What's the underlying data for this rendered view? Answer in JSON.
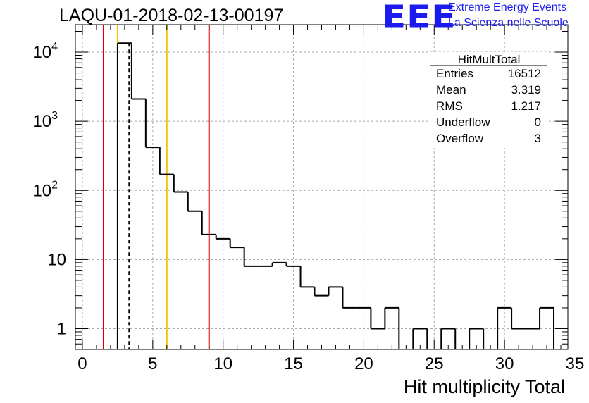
{
  "header": {
    "title": "LAQU-01-2018-02-13-00197",
    "logo_text": "EEE",
    "logo_line1": "Extreme Energy Events",
    "logo_line2": "La Scienza nelle Scuole"
  },
  "stats": {
    "name": "HitMultTotal",
    "rows": [
      {
        "label": "Entries",
        "value": "16512"
      },
      {
        "label": "Mean",
        "value": "3.319"
      },
      {
        "label": "RMS",
        "value": "1.217"
      },
      {
        "label": "Underflow",
        "value": "0"
      },
      {
        "label": "Overflow",
        "value": "3"
      }
    ]
  },
  "colors": {
    "red": "#e00000",
    "yellow": "#f2c200",
    "grid": "#a8a8a8",
    "axis": "#000000",
    "logo": "#1b1bf0"
  },
  "chart_data": {
    "type": "histogram",
    "title": "LAQU-01-2018-02-13-00197",
    "xlabel": "Hit multiplicity Total",
    "ylabel": "",
    "yscale": "log",
    "xlim": [
      -0.5,
      34.5
    ],
    "ylim": [
      0.5,
      25000
    ],
    "xticks": [
      0,
      5,
      10,
      15,
      20,
      25,
      30,
      35
    ],
    "yticks": [
      {
        "value": 1,
        "label": "1"
      },
      {
        "value": 10,
        "label": "10"
      },
      {
        "value": 100,
        "label": "10^2"
      },
      {
        "value": 1000,
        "label": "10^3"
      },
      {
        "value": 10000,
        "label": "10^4"
      }
    ],
    "grid": true,
    "bins": [
      {
        "lo": 2.5,
        "hi": 3.5,
        "count": 13500
      },
      {
        "lo": 3.5,
        "hi": 4.5,
        "count": 2100
      },
      {
        "lo": 4.5,
        "hi": 5.5,
        "count": 420
      },
      {
        "lo": 5.5,
        "hi": 6.5,
        "count": 170
      },
      {
        "lo": 6.5,
        "hi": 7.5,
        "count": 95
      },
      {
        "lo": 7.5,
        "hi": 8.5,
        "count": 50
      },
      {
        "lo": 8.5,
        "hi": 9.5,
        "count": 23
      },
      {
        "lo": 9.5,
        "hi": 10.5,
        "count": 20
      },
      {
        "lo": 10.5,
        "hi": 11.5,
        "count": 15
      },
      {
        "lo": 11.5,
        "hi": 12.5,
        "count": 8
      },
      {
        "lo": 12.5,
        "hi": 13.5,
        "count": 8
      },
      {
        "lo": 13.5,
        "hi": 14.5,
        "count": 9
      },
      {
        "lo": 14.5,
        "hi": 15.5,
        "count": 8
      },
      {
        "lo": 15.5,
        "hi": 16.5,
        "count": 4
      },
      {
        "lo": 16.5,
        "hi": 17.5,
        "count": 3
      },
      {
        "lo": 17.5,
        "hi": 18.5,
        "count": 4
      },
      {
        "lo": 18.5,
        "hi": 19.5,
        "count": 2
      },
      {
        "lo": 19.5,
        "hi": 20.5,
        "count": 2
      },
      {
        "lo": 20.5,
        "hi": 21.5,
        "count": 1
      },
      {
        "lo": 21.5,
        "hi": 22.5,
        "count": 2
      },
      {
        "lo": 22.5,
        "hi": 23.5,
        "count": 0
      },
      {
        "lo": 23.5,
        "hi": 24.5,
        "count": 1
      },
      {
        "lo": 24.5,
        "hi": 25.5,
        "count": 0
      },
      {
        "lo": 25.5,
        "hi": 26.5,
        "count": 1
      },
      {
        "lo": 26.5,
        "hi": 27.5,
        "count": 0
      },
      {
        "lo": 27.5,
        "hi": 28.5,
        "count": 1
      },
      {
        "lo": 28.5,
        "hi": 29.5,
        "count": 0
      },
      {
        "lo": 29.5,
        "hi": 30.5,
        "count": 2
      },
      {
        "lo": 30.5,
        "hi": 31.5,
        "count": 1
      },
      {
        "lo": 31.5,
        "hi": 32.5,
        "count": 1
      },
      {
        "lo": 32.5,
        "hi": 33.5,
        "count": 2
      },
      {
        "lo": 33.5,
        "hi": 34.5,
        "count": 0
      }
    ],
    "markers": [
      {
        "x": 1.5,
        "color": "red",
        "style": "solid"
      },
      {
        "x": 2.5,
        "color": "yellow",
        "style": "solid"
      },
      {
        "x": 3.32,
        "color": "black",
        "style": "dashed"
      },
      {
        "x": 6.0,
        "color": "yellow",
        "style": "solid"
      },
      {
        "x": 9.0,
        "color": "red",
        "style": "solid"
      }
    ]
  }
}
